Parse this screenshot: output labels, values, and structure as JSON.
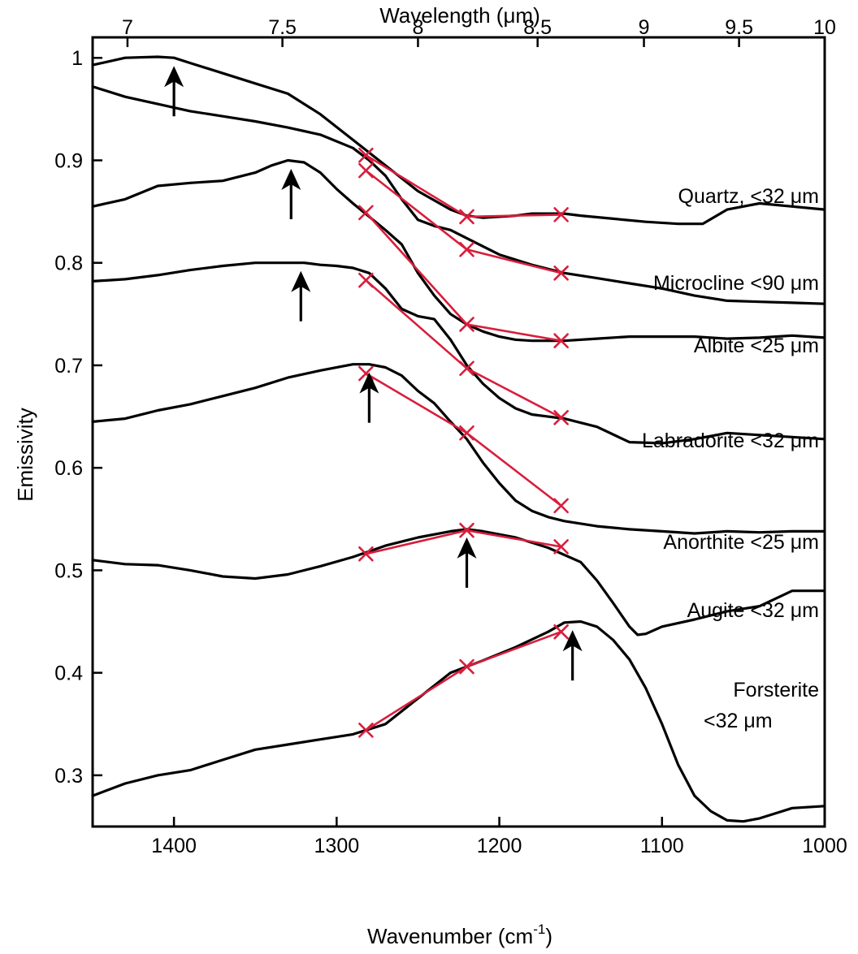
{
  "chart_data": {
    "type": "line",
    "xlabel": "Wavenumber (cm",
    "xlabel_sup": "-1",
    "xlabel_end": ")",
    "ylabel": "Emissivity",
    "top_axis_label": "Wavelength (μm)",
    "xlim": [
      1450,
      1000
    ],
    "ylim": [
      0.25,
      1.02
    ],
    "x_ticks": [
      1400,
      1300,
      1200,
      1100,
      1000
    ],
    "x_tick_labels": [
      "1400",
      "1300",
      "1200",
      "1100",
      "1000"
    ],
    "y_ticks": [
      0.3,
      0.4,
      0.5,
      0.6,
      0.7,
      0.8,
      0.9,
      1.0
    ],
    "y_tick_labels": [
      "0.3",
      "0.4",
      "0.5",
      "0.6",
      "0.7",
      "0.8",
      "0.9",
      "1"
    ],
    "top_ticks": [
      7,
      7.5,
      8,
      8.5,
      9,
      9.5,
      10
    ],
    "top_tick_labels": [
      "7",
      "7.5",
      "8",
      "8.5",
      "9",
      "9.5",
      "10"
    ],
    "series": [
      {
        "name": "Quartz, <32 μm",
        "label_lines": [
          "Quartz, <32 μm"
        ],
        "x": [
          1450,
          1430,
          1410,
          1400,
          1390,
          1370,
          1350,
          1330,
          1310,
          1290,
          1270,
          1250,
          1230,
          1220,
          1210,
          1200,
          1190,
          1180,
          1170,
          1160,
          1150,
          1130,
          1110,
          1090,
          1075,
          1060,
          1040,
          1020,
          1000
        ],
        "y": [
          0.993,
          1.0,
          1.001,
          1.0,
          0.995,
          0.985,
          0.975,
          0.965,
          0.945,
          0.92,
          0.895,
          0.87,
          0.852,
          0.846,
          0.844,
          0.845,
          0.846,
          0.848,
          0.848,
          0.848,
          0.846,
          0.843,
          0.84,
          0.838,
          0.838,
          0.852,
          0.858,
          0.855,
          0.852
        ],
        "arrow": 1400,
        "hull_x": [
          1282,
          1220,
          1162
        ],
        "hull_y": [
          0.905,
          0.845,
          0.847
        ]
      },
      {
        "name": "Microcline <90 μm",
        "label_lines": [
          "Microcline <90 μm"
        ],
        "x": [
          1450,
          1430,
          1410,
          1390,
          1370,
          1350,
          1330,
          1310,
          1290,
          1280,
          1270,
          1260,
          1250,
          1240,
          1230,
          1220,
          1200,
          1180,
          1160,
          1140,
          1120,
          1100,
          1080,
          1060,
          1040,
          1020,
          1000
        ],
        "y": [
          0.972,
          0.962,
          0.955,
          0.948,
          0.943,
          0.938,
          0.932,
          0.925,
          0.912,
          0.9,
          0.885,
          0.862,
          0.842,
          0.836,
          0.832,
          0.824,
          0.808,
          0.798,
          0.79,
          0.785,
          0.78,
          0.775,
          0.768,
          0.763,
          0.762,
          0.761,
          0.76
        ],
        "arrow": null,
        "hull_x": [
          1282,
          1220,
          1162
        ],
        "hull_y": [
          0.89,
          0.813,
          0.79
        ]
      },
      {
        "name": "Albite <25 μm",
        "label_lines": [
          "Albite <25 μm"
        ],
        "x": [
          1450,
          1430,
          1410,
          1390,
          1370,
          1350,
          1340,
          1330,
          1320,
          1310,
          1300,
          1290,
          1280,
          1270,
          1260,
          1250,
          1240,
          1230,
          1220,
          1210,
          1200,
          1190,
          1180,
          1170,
          1160,
          1140,
          1120,
          1100,
          1080,
          1060,
          1040,
          1020,
          1000
        ],
        "y": [
          0.855,
          0.862,
          0.875,
          0.878,
          0.88,
          0.888,
          0.895,
          0.9,
          0.898,
          0.888,
          0.872,
          0.858,
          0.845,
          0.832,
          0.818,
          0.79,
          0.768,
          0.75,
          0.74,
          0.733,
          0.728,
          0.725,
          0.724,
          0.724,
          0.724,
          0.726,
          0.728,
          0.728,
          0.728,
          0.726,
          0.727,
          0.729,
          0.727
        ],
        "arrow": 1328,
        "hull_x": [
          1282,
          1220,
          1162
        ],
        "hull_y": [
          0.849,
          0.74,
          0.724
        ]
      },
      {
        "name": "Labradorite <32 μm",
        "label_lines": [
          "Labradorite <32 μm"
        ],
        "x": [
          1450,
          1430,
          1410,
          1390,
          1370,
          1350,
          1330,
          1320,
          1310,
          1300,
          1290,
          1280,
          1270,
          1260,
          1250,
          1240,
          1230,
          1220,
          1210,
          1200,
          1190,
          1180,
          1170,
          1160,
          1140,
          1120,
          1100,
          1080,
          1060,
          1040,
          1020,
          1000
        ],
        "y": [
          0.782,
          0.784,
          0.788,
          0.793,
          0.797,
          0.8,
          0.8,
          0.8,
          0.798,
          0.797,
          0.795,
          0.79,
          0.775,
          0.755,
          0.748,
          0.745,
          0.725,
          0.7,
          0.682,
          0.668,
          0.658,
          0.652,
          0.65,
          0.648,
          0.64,
          0.625,
          0.624,
          0.628,
          0.634,
          0.632,
          0.63,
          0.628
        ],
        "arrow": 1322,
        "hull_x": [
          1282,
          1220,
          1162
        ],
        "hull_y": [
          0.783,
          0.697,
          0.649
        ]
      },
      {
        "name": "Anorthite <25 μm",
        "label_lines": [
          "Anorthite <25 μm"
        ],
        "x": [
          1450,
          1430,
          1410,
          1390,
          1370,
          1350,
          1330,
          1310,
          1290,
          1280,
          1270,
          1260,
          1250,
          1240,
          1230,
          1220,
          1210,
          1200,
          1190,
          1180,
          1170,
          1160,
          1140,
          1120,
          1100,
          1080,
          1060,
          1040,
          1020,
          1000
        ],
        "y": [
          0.645,
          0.648,
          0.656,
          0.662,
          0.67,
          0.678,
          0.688,
          0.695,
          0.701,
          0.701,
          0.698,
          0.69,
          0.675,
          0.663,
          0.645,
          0.628,
          0.605,
          0.585,
          0.568,
          0.558,
          0.552,
          0.548,
          0.543,
          0.54,
          0.538,
          0.536,
          0.538,
          0.537,
          0.538,
          0.538
        ],
        "arrow": 1280,
        "hull_x": [
          1282,
          1220,
          1162
        ],
        "hull_y": [
          0.692,
          0.634,
          0.563
        ]
      },
      {
        "name": "Augite <32 μm",
        "label_lines": [
          "Augite <32 μm"
        ],
        "x": [
          1450,
          1430,
          1410,
          1390,
          1370,
          1350,
          1330,
          1310,
          1290,
          1270,
          1250,
          1230,
          1220,
          1210,
          1190,
          1170,
          1150,
          1140,
          1130,
          1120,
          1115,
          1110,
          1100,
          1080,
          1060,
          1040,
          1020,
          1000
        ],
        "y": [
          0.51,
          0.506,
          0.505,
          0.5,
          0.494,
          0.492,
          0.496,
          0.504,
          0.513,
          0.524,
          0.532,
          0.538,
          0.54,
          0.538,
          0.532,
          0.522,
          0.508,
          0.49,
          0.468,
          0.445,
          0.437,
          0.438,
          0.445,
          0.452,
          0.46,
          0.465,
          0.48,
          0.48
        ],
        "arrow": 1220,
        "hull_x": [
          1282,
          1220,
          1162
        ],
        "hull_y": [
          0.516,
          0.539,
          0.523
        ]
      },
      {
        "name": "Forsterite <32 μm",
        "label_lines": [
          "Forsterite",
          "<32 μm"
        ],
        "x": [
          1450,
          1430,
          1410,
          1390,
          1370,
          1350,
          1330,
          1310,
          1290,
          1270,
          1250,
          1230,
          1210,
          1190,
          1170,
          1160,
          1150,
          1140,
          1130,
          1120,
          1110,
          1100,
          1090,
          1080,
          1070,
          1060,
          1050,
          1040,
          1030,
          1020,
          1000
        ],
        "y": [
          0.28,
          0.292,
          0.3,
          0.305,
          0.315,
          0.325,
          0.33,
          0.335,
          0.34,
          0.35,
          0.375,
          0.4,
          0.412,
          0.425,
          0.44,
          0.449,
          0.45,
          0.445,
          0.432,
          0.413,
          0.385,
          0.35,
          0.31,
          0.28,
          0.265,
          0.256,
          0.255,
          0.258,
          0.263,
          0.268,
          0.27
        ],
        "arrow": 1155,
        "hull_x": [
          1282,
          1220,
          1162
        ],
        "hull_y": [
          0.344,
          0.406,
          0.44
        ]
      }
    ],
    "colors": {
      "spectra": "#000000",
      "continuum": "#d81e3c",
      "arrows": "#000000"
    },
    "grid": false,
    "legend": "none"
  }
}
